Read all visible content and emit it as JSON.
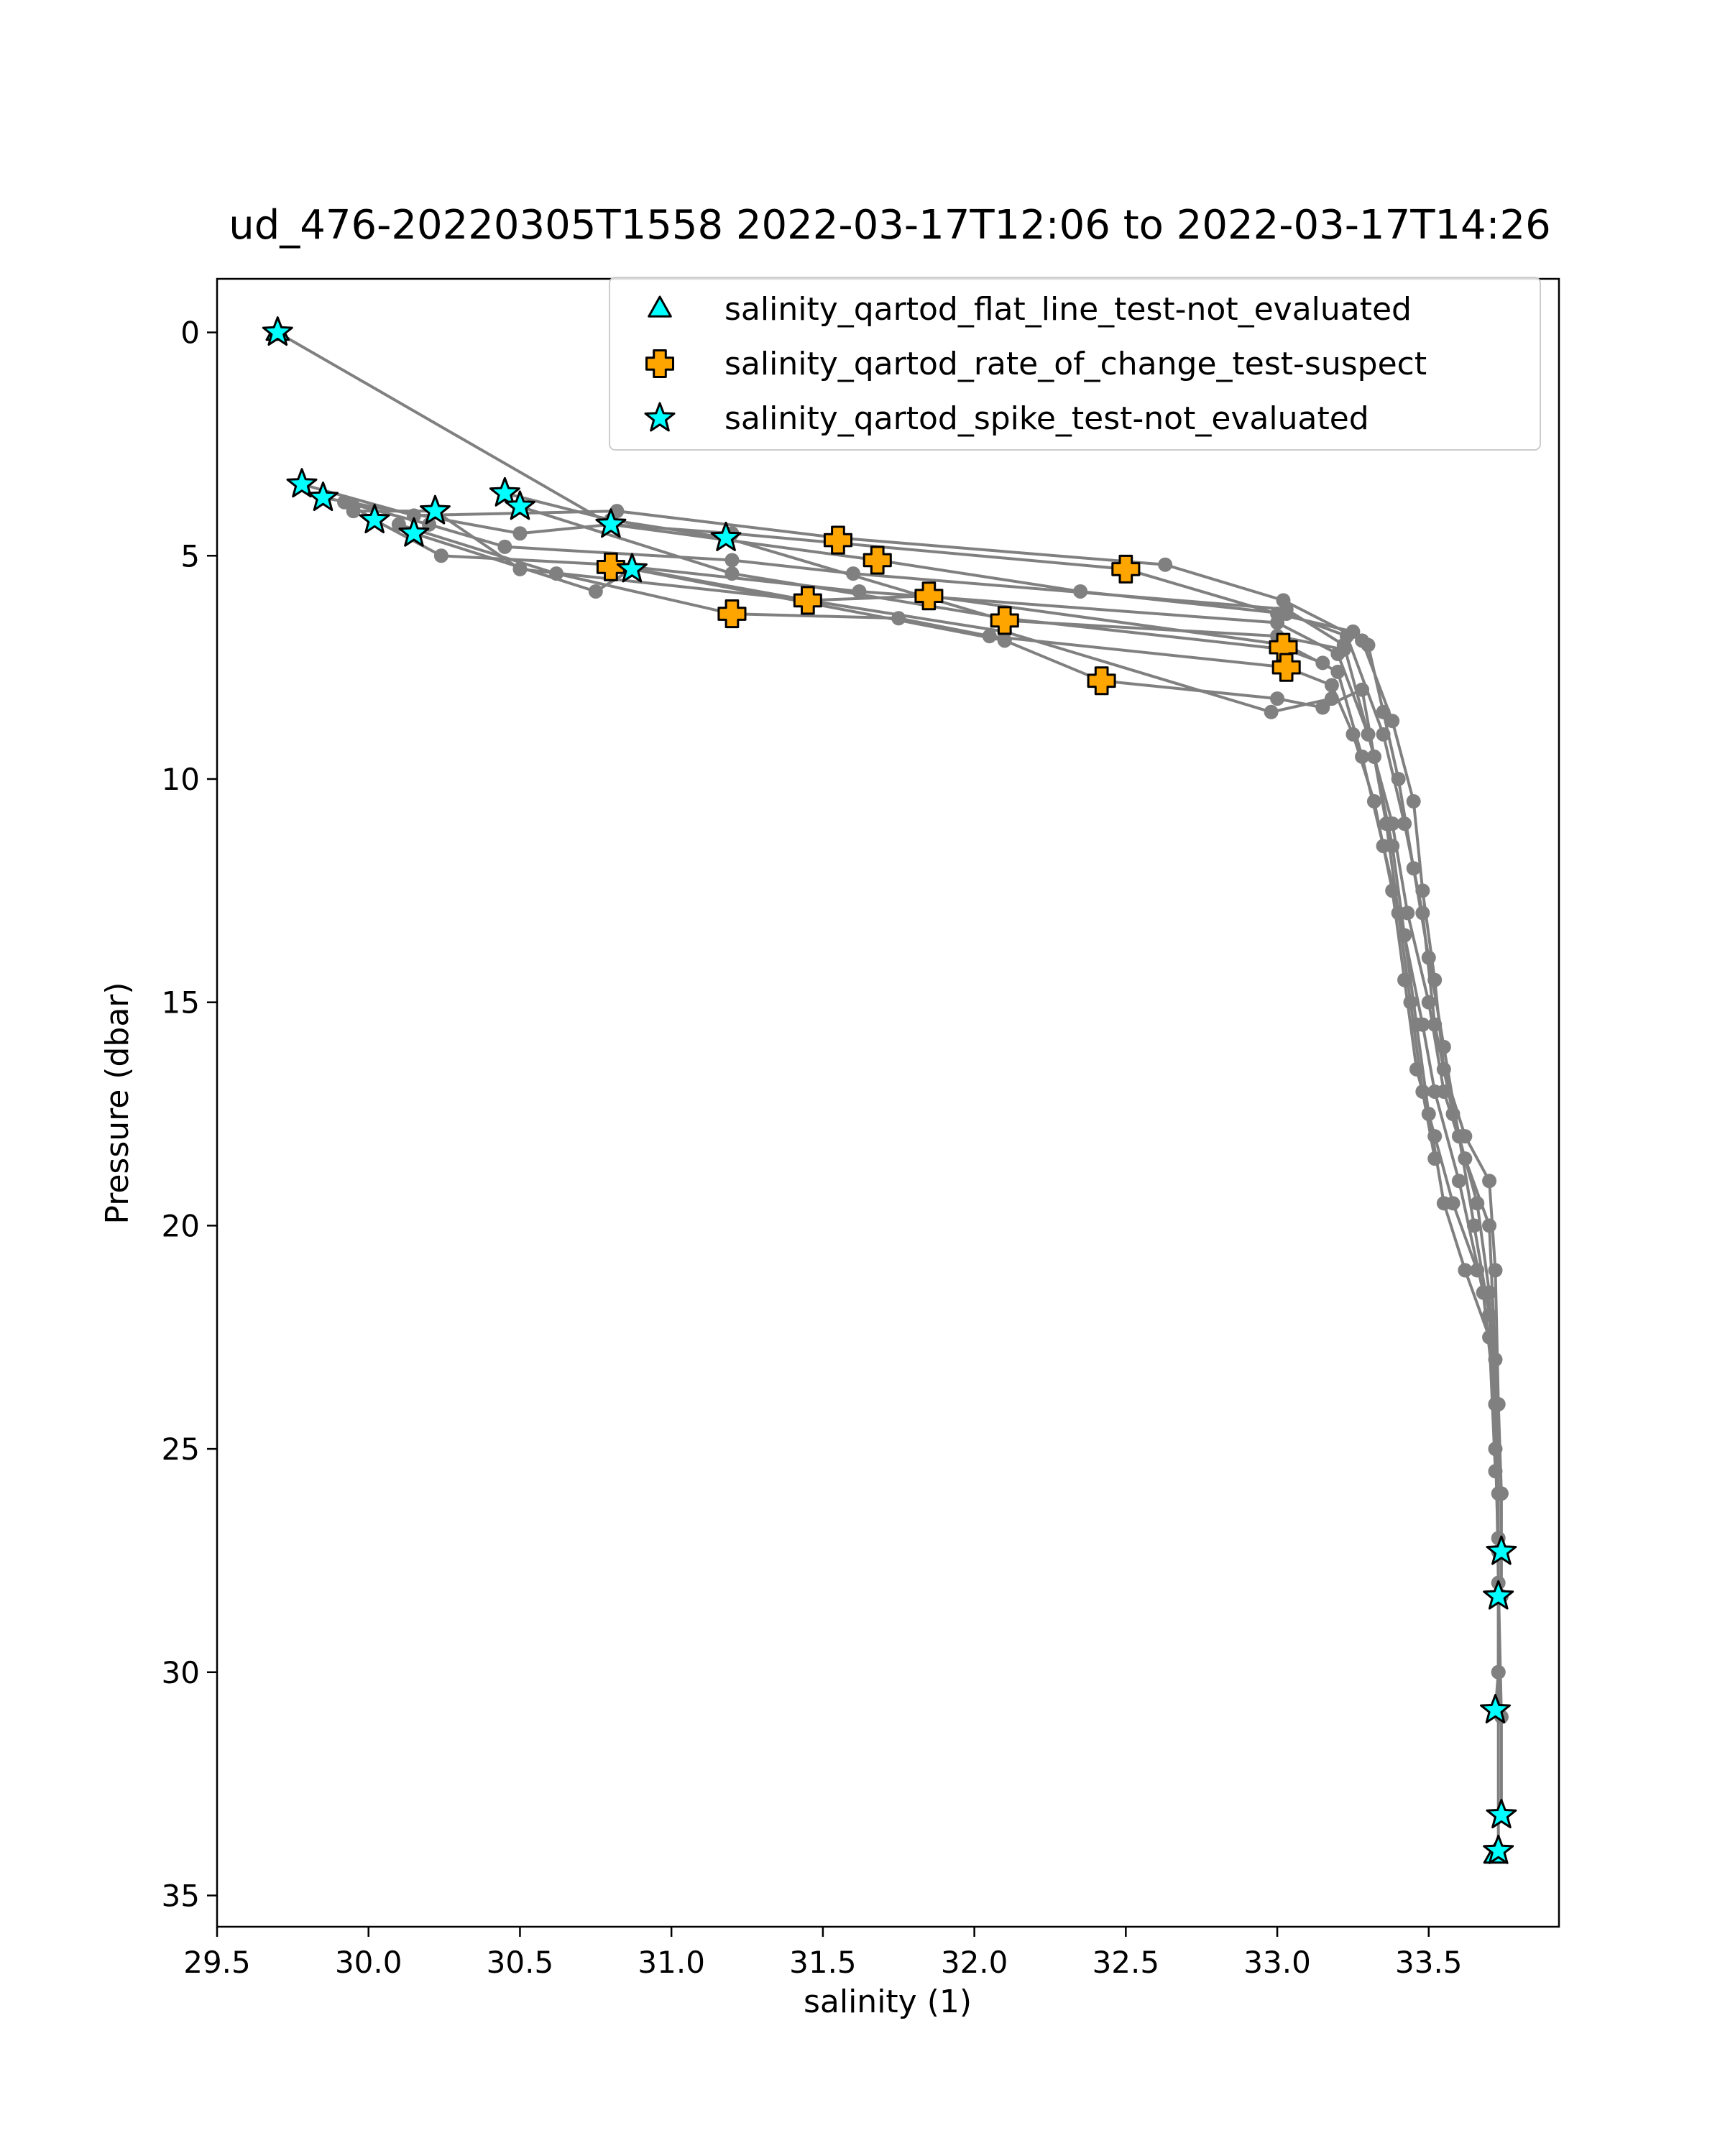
{
  "chart_data": {
    "type": "scatter",
    "title": "ud_476-20220305T1558 2022-03-17T12:06 to 2022-03-17T14:26",
    "xlabel": "salinity (1)",
    "ylabel": "Pressure (dbar)",
    "xlim": [
      29.5,
      33.93
    ],
    "ylim": [
      -1.2,
      35.7
    ],
    "y_inverted": true,
    "xticks": [
      29.5,
      30.0,
      30.5,
      31.0,
      31.5,
      32.0,
      32.5,
      33.0,
      33.5
    ],
    "xtick_labels": [
      "29.5",
      "30.0",
      "30.5",
      "31.0",
      "31.5",
      "32.0",
      "32.5",
      "33.0",
      "33.5"
    ],
    "yticks": [
      0,
      5,
      10,
      15,
      20,
      25,
      30,
      35
    ],
    "ytick_labels": [
      "0",
      "5",
      "10",
      "15",
      "20",
      "25",
      "30",
      "35"
    ],
    "legend_position": "top-right",
    "line_color": "#808080",
    "profiles": [
      [
        [
          29.7,
          0.0
        ],
        [
          30.8,
          4.3
        ],
        [
          31.2,
          4.5
        ],
        [
          32.5,
          5.3
        ],
        [
          33.0,
          6.3
        ],
        [
          33.25,
          6.7
        ],
        [
          33.3,
          7.0
        ],
        [
          33.35,
          8.5
        ],
        [
          33.4,
          10.0
        ],
        [
          33.45,
          12.0
        ],
        [
          33.5,
          14.0
        ],
        [
          33.55,
          16.0
        ],
        [
          33.6,
          18.0
        ],
        [
          33.65,
          20.0
        ],
        [
          33.7,
          22.0
        ],
        [
          33.72,
          25.0
        ],
        [
          33.73,
          27.3
        ]
      ],
      [
        [
          29.78,
          3.4
        ],
        [
          30.15,
          4.1
        ],
        [
          30.82,
          4.0
        ],
        [
          31.55,
          4.6
        ],
        [
          32.63,
          5.2
        ],
        [
          33.02,
          6.0
        ],
        [
          33.28,
          6.9
        ],
        [
          33.38,
          8.7
        ],
        [
          33.45,
          10.5
        ],
        [
          33.48,
          12.5
        ],
        [
          33.52,
          14.5
        ],
        [
          33.55,
          16.5
        ],
        [
          33.62,
          18.0
        ],
        [
          33.7,
          19.0
        ],
        [
          33.72,
          21.0
        ],
        [
          33.73,
          24.0
        ],
        [
          33.74,
          26.0
        ],
        [
          33.74,
          28.3
        ]
      ],
      [
        [
          29.85,
          3.7
        ],
        [
          30.5,
          4.5
        ],
        [
          30.8,
          4.3
        ],
        [
          31.68,
          5.1
        ],
        [
          32.35,
          5.8
        ],
        [
          33.03,
          6.3
        ],
        [
          33.23,
          6.8
        ],
        [
          33.35,
          9.0
        ],
        [
          33.42,
          11.0
        ],
        [
          33.48,
          13.0
        ],
        [
          33.52,
          15.5
        ],
        [
          33.58,
          17.5
        ],
        [
          33.66,
          19.5
        ],
        [
          33.7,
          21.5
        ],
        [
          33.72,
          24.0
        ],
        [
          33.73,
          27.0
        ],
        [
          33.73,
          30.0
        ],
        [
          33.72,
          30.85
        ]
      ],
      [
        [
          29.92,
          3.8
        ],
        [
          30.2,
          4.3
        ],
        [
          30.45,
          4.8
        ],
        [
          31.2,
          5.1
        ],
        [
          31.6,
          5.4
        ],
        [
          33.03,
          6.2
        ],
        [
          33.22,
          7.0
        ],
        [
          33.32,
          9.5
        ],
        [
          33.38,
          11.5
        ],
        [
          33.42,
          13.5
        ],
        [
          33.48,
          15.5
        ],
        [
          33.52,
          17.0
        ],
        [
          33.6,
          19.0
        ],
        [
          33.68,
          21.5
        ],
        [
          33.72,
          24.0
        ],
        [
          33.73,
          28.0
        ],
        [
          33.74,
          31.0
        ],
        [
          33.74,
          33.2
        ]
      ],
      [
        [
          29.95,
          3.9
        ],
        [
          30.02,
          4.2
        ],
        [
          30.24,
          5.0
        ],
        [
          30.8,
          5.2
        ],
        [
          31.62,
          5.8
        ],
        [
          33.0,
          6.5
        ],
        [
          33.2,
          7.2
        ],
        [
          33.3,
          9.0
        ],
        [
          33.38,
          11.0
        ],
        [
          33.43,
          13.0
        ],
        [
          33.5,
          15.0
        ],
        [
          33.55,
          17.0
        ],
        [
          33.62,
          18.5
        ],
        [
          33.7,
          20.0
        ],
        [
          33.72,
          23.0
        ],
        [
          33.73,
          26.0
        ],
        [
          33.73,
          30.0
        ],
        [
          33.73,
          34.0
        ]
      ],
      [
        [
          29.95,
          4.0
        ],
        [
          30.22,
          4.0
        ],
        [
          30.5,
          5.3
        ],
        [
          31.45,
          6.0
        ],
        [
          31.85,
          5.9
        ],
        [
          33.03,
          7.0
        ],
        [
          33.2,
          7.6
        ],
        [
          33.28,
          9.5
        ],
        [
          33.35,
          11.5
        ],
        [
          33.42,
          13.5
        ],
        [
          33.46,
          15.5
        ],
        [
          33.5,
          17.5
        ],
        [
          33.55,
          19.5
        ],
        [
          33.62,
          21.0
        ],
        [
          33.7,
          22.5
        ],
        [
          33.72,
          25.5
        ]
      ],
      [
        [
          30.1,
          4.3
        ],
        [
          30.62,
          5.4
        ],
        [
          31.2,
          6.3
        ],
        [
          31.75,
          6.4
        ],
        [
          32.05,
          6.8
        ],
        [
          33.03,
          7.5
        ],
        [
          33.18,
          7.9
        ],
        [
          33.25,
          9.0
        ],
        [
          33.32,
          10.5
        ],
        [
          33.38,
          12.5
        ],
        [
          33.42,
          14.5
        ],
        [
          33.46,
          16.5
        ],
        [
          33.52,
          18.0
        ],
        [
          33.58,
          19.5
        ],
        [
          33.66,
          21.0
        ]
      ],
      [
        [
          30.15,
          4.5
        ],
        [
          30.75,
          5.8
        ],
        [
          30.87,
          5.3
        ],
        [
          32.1,
          6.9
        ],
        [
          32.42,
          7.8
        ],
        [
          33.0,
          8.2
        ],
        [
          33.15,
          8.4
        ],
        [
          33.28,
          8.0
        ],
        [
          33.32,
          9.5
        ],
        [
          33.36,
          11.0
        ],
        [
          33.4,
          13.0
        ],
        [
          33.44,
          15.0
        ],
        [
          33.48,
          17.0
        ],
        [
          33.52,
          18.5
        ]
      ],
      [
        [
          30.45,
          3.6
        ],
        [
          30.8,
          4.2
        ],
        [
          31.18,
          4.6
        ],
        [
          32.1,
          6.45
        ],
        [
          33.0,
          6.8
        ],
        [
          33.22,
          7.1
        ]
      ],
      [
        [
          30.5,
          3.9
        ],
        [
          31.2,
          5.4
        ],
        [
          32.1,
          6.4
        ],
        [
          33.03,
          7.1
        ],
        [
          33.15,
          7.4
        ]
      ],
      [
        [
          30.8,
          5.2
        ],
        [
          31.45,
          6.0
        ],
        [
          32.1,
          6.7
        ],
        [
          32.98,
          8.5
        ],
        [
          33.18,
          8.2
        ]
      ]
    ],
    "legend": [
      {
        "label": "salinity_qartod_flat_line_test-not_evaluated",
        "marker": "triangle",
        "color": "#00ffff"
      },
      {
        "label": "salinity_qartod_rate_of_change_test-suspect",
        "marker": "x",
        "color": "#ffa500"
      },
      {
        "label": "salinity_qartod_spike_test-not_evaluated",
        "marker": "star",
        "color": "#00ffff"
      }
    ],
    "series": [
      {
        "name": "salinity_qartod_flat_line_test-not_evaluated",
        "marker": "triangle",
        "color": "#00ffff",
        "points": [
          [
            29.7,
            0.0
          ],
          [
            33.72,
            34.1
          ]
        ]
      },
      {
        "name": "salinity_qartod_rate_of_change_test-suspect",
        "marker": "x",
        "color": "#ffa500",
        "points": [
          [
            31.55,
            4.65
          ],
          [
            31.68,
            5.1
          ],
          [
            32.5,
            5.3
          ],
          [
            30.8,
            5.25
          ],
          [
            31.85,
            5.9
          ],
          [
            31.45,
            6.0
          ],
          [
            31.2,
            6.3
          ],
          [
            32.1,
            6.45
          ],
          [
            33.02,
            7.05
          ],
          [
            33.03,
            7.5
          ],
          [
            32.42,
            7.8
          ]
        ]
      },
      {
        "name": "salinity_qartod_spike_test-not_evaluated",
        "marker": "star",
        "color": "#00ffff",
        "points": [
          [
            29.7,
            0.0
          ],
          [
            29.78,
            3.4
          ],
          [
            29.85,
            3.7
          ],
          [
            30.02,
            4.2
          ],
          [
            30.15,
            4.5
          ],
          [
            30.22,
            4.0
          ],
          [
            30.45,
            3.6
          ],
          [
            30.5,
            3.9
          ],
          [
            30.8,
            4.3
          ],
          [
            30.87,
            5.3
          ],
          [
            31.18,
            4.6
          ],
          [
            33.74,
            27.3
          ],
          [
            33.73,
            28.3
          ],
          [
            33.72,
            30.85
          ],
          [
            33.74,
            33.2
          ],
          [
            33.73,
            34.0
          ]
        ]
      }
    ]
  }
}
